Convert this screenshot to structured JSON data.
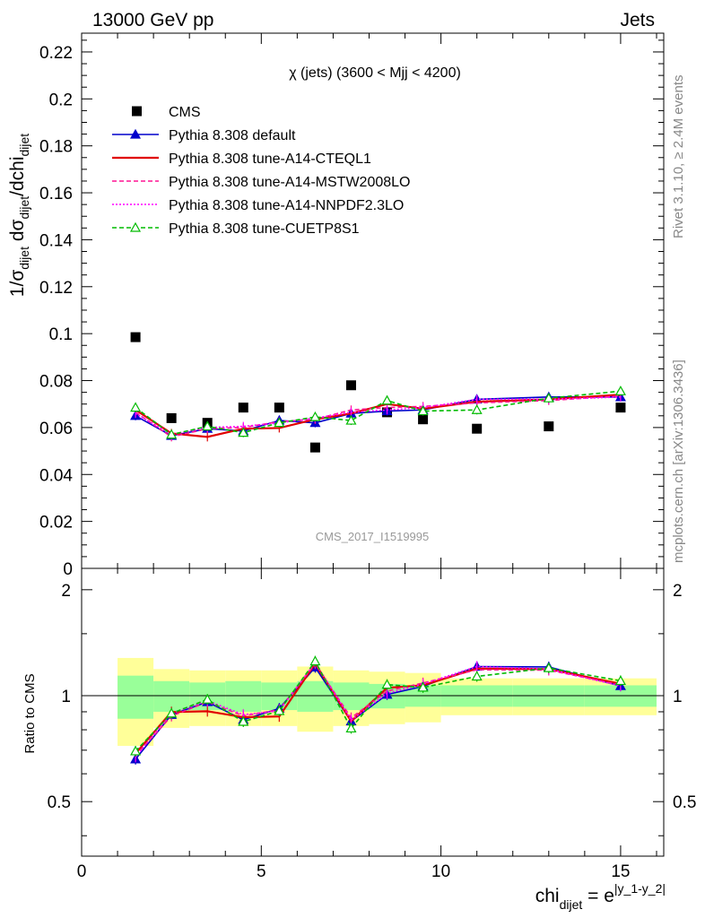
{
  "header": {
    "left": "13000 GeV pp",
    "right": "Jets",
    "side_top": "Rivet 3.1.10, ≥ 2.4M events",
    "side_bottom": "mcplots.cern.ch [arXiv:1306.3436]",
    "watermark": "CMS_2017_I1519995",
    "plot_title": "χ (jets) (3600 < Mjj < 4200)"
  },
  "axes": {
    "ylabel_main": "1/σ_dijet dσ_dijet/dchi_dijet",
    "ylabel_ratio": "Ratio to CMS",
    "xlabel": "chi_dijet = e^|y_1-y_2|"
  },
  "chart_data": {
    "type": "line",
    "title": "χ (jets) (3600 < Mjj < 4200)",
    "xlim": [
      0,
      16.2
    ],
    "ylim": [
      0,
      0.228
    ],
    "ratio_ylim": [
      0.35,
      2.3
    ],
    "x_ticks": [
      "0",
      "5",
      "10",
      "15"
    ],
    "y_ticks": [
      "0",
      "0.02",
      "0.04",
      "0.06",
      "0.08",
      "0.1",
      "0.12",
      "0.14",
      "0.16",
      "0.18",
      "0.2",
      "0.22"
    ],
    "ratio_ticks": [
      "0.5",
      "1",
      "2"
    ],
    "x": [
      1.5,
      2.5,
      3.5,
      4.5,
      5.5,
      6.5,
      7.5,
      8.5,
      9.5,
      11.0,
      13.0,
      15.0
    ],
    "bins": [
      [
        1,
        2
      ],
      [
        2,
        3
      ],
      [
        3,
        4
      ],
      [
        4,
        5
      ],
      [
        5,
        6
      ],
      [
        6,
        7
      ],
      [
        7,
        8
      ],
      [
        8,
        9
      ],
      [
        9,
        10
      ],
      [
        10,
        12
      ],
      [
        12,
        14
      ],
      [
        14,
        16
      ]
    ],
    "band_inner": [
      0.14,
      0.1,
      0.09,
      0.1,
      0.09,
      0.1,
      0.09,
      0.08,
      0.07,
      0.07,
      0.07,
      0.07
    ],
    "band_outer": [
      0.28,
      0.19,
      0.18,
      0.18,
      0.18,
      0.21,
      0.18,
      0.17,
      0.16,
      0.12,
      0.12,
      0.12
    ],
    "legend_position": "top-left",
    "series": [
      {
        "name": "CMS",
        "color": "#000000",
        "style": "data",
        "values": [
          0.0985,
          0.064,
          0.062,
          0.0685,
          0.0685,
          0.0515,
          0.078,
          0.0665,
          0.0635,
          0.0595,
          0.0605,
          0.0685
        ]
      },
      {
        "name": "Pythia 8.308 default",
        "color": "#0000cc",
        "style": "solid-tri",
        "values": [
          0.065,
          0.0565,
          0.0595,
          0.0585,
          0.063,
          0.062,
          0.066,
          0.067,
          0.0675,
          0.072,
          0.073,
          0.073
        ]
      },
      {
        "name": "Pythia 8.308 tune-A14-CTEQL1",
        "color": "#e00000",
        "style": "solid",
        "values": [
          0.0675,
          0.0575,
          0.056,
          0.0595,
          0.0598,
          0.0635,
          0.066,
          0.07,
          0.068,
          0.071,
          0.072,
          0.074
        ]
      },
      {
        "name": "Pythia 8.308 tune-A14-MSTW2008LO",
        "color": "#ff1493",
        "style": "dashed",
        "values": [
          0.0665,
          0.056,
          0.0595,
          0.06,
          0.0625,
          0.0635,
          0.0675,
          0.0685,
          0.069,
          0.0705,
          0.0715,
          0.0735
        ]
      },
      {
        "name": "Pythia 8.308 tune-A14-NNPDF2.3LO",
        "color": "#ff00ff",
        "style": "dotted",
        "values": [
          0.066,
          0.057,
          0.06,
          0.0605,
          0.062,
          0.064,
          0.0665,
          0.0675,
          0.0685,
          0.072,
          0.072,
          0.073
        ]
      },
      {
        "name": "Pythia 8.308 tune-CUETP8S1",
        "color": "#00bb00",
        "style": "dashed-opentri",
        "values": [
          0.0685,
          0.057,
          0.0605,
          0.0578,
          0.062,
          0.0645,
          0.063,
          0.0715,
          0.067,
          0.0675,
          0.0725,
          0.0755
        ]
      }
    ]
  }
}
